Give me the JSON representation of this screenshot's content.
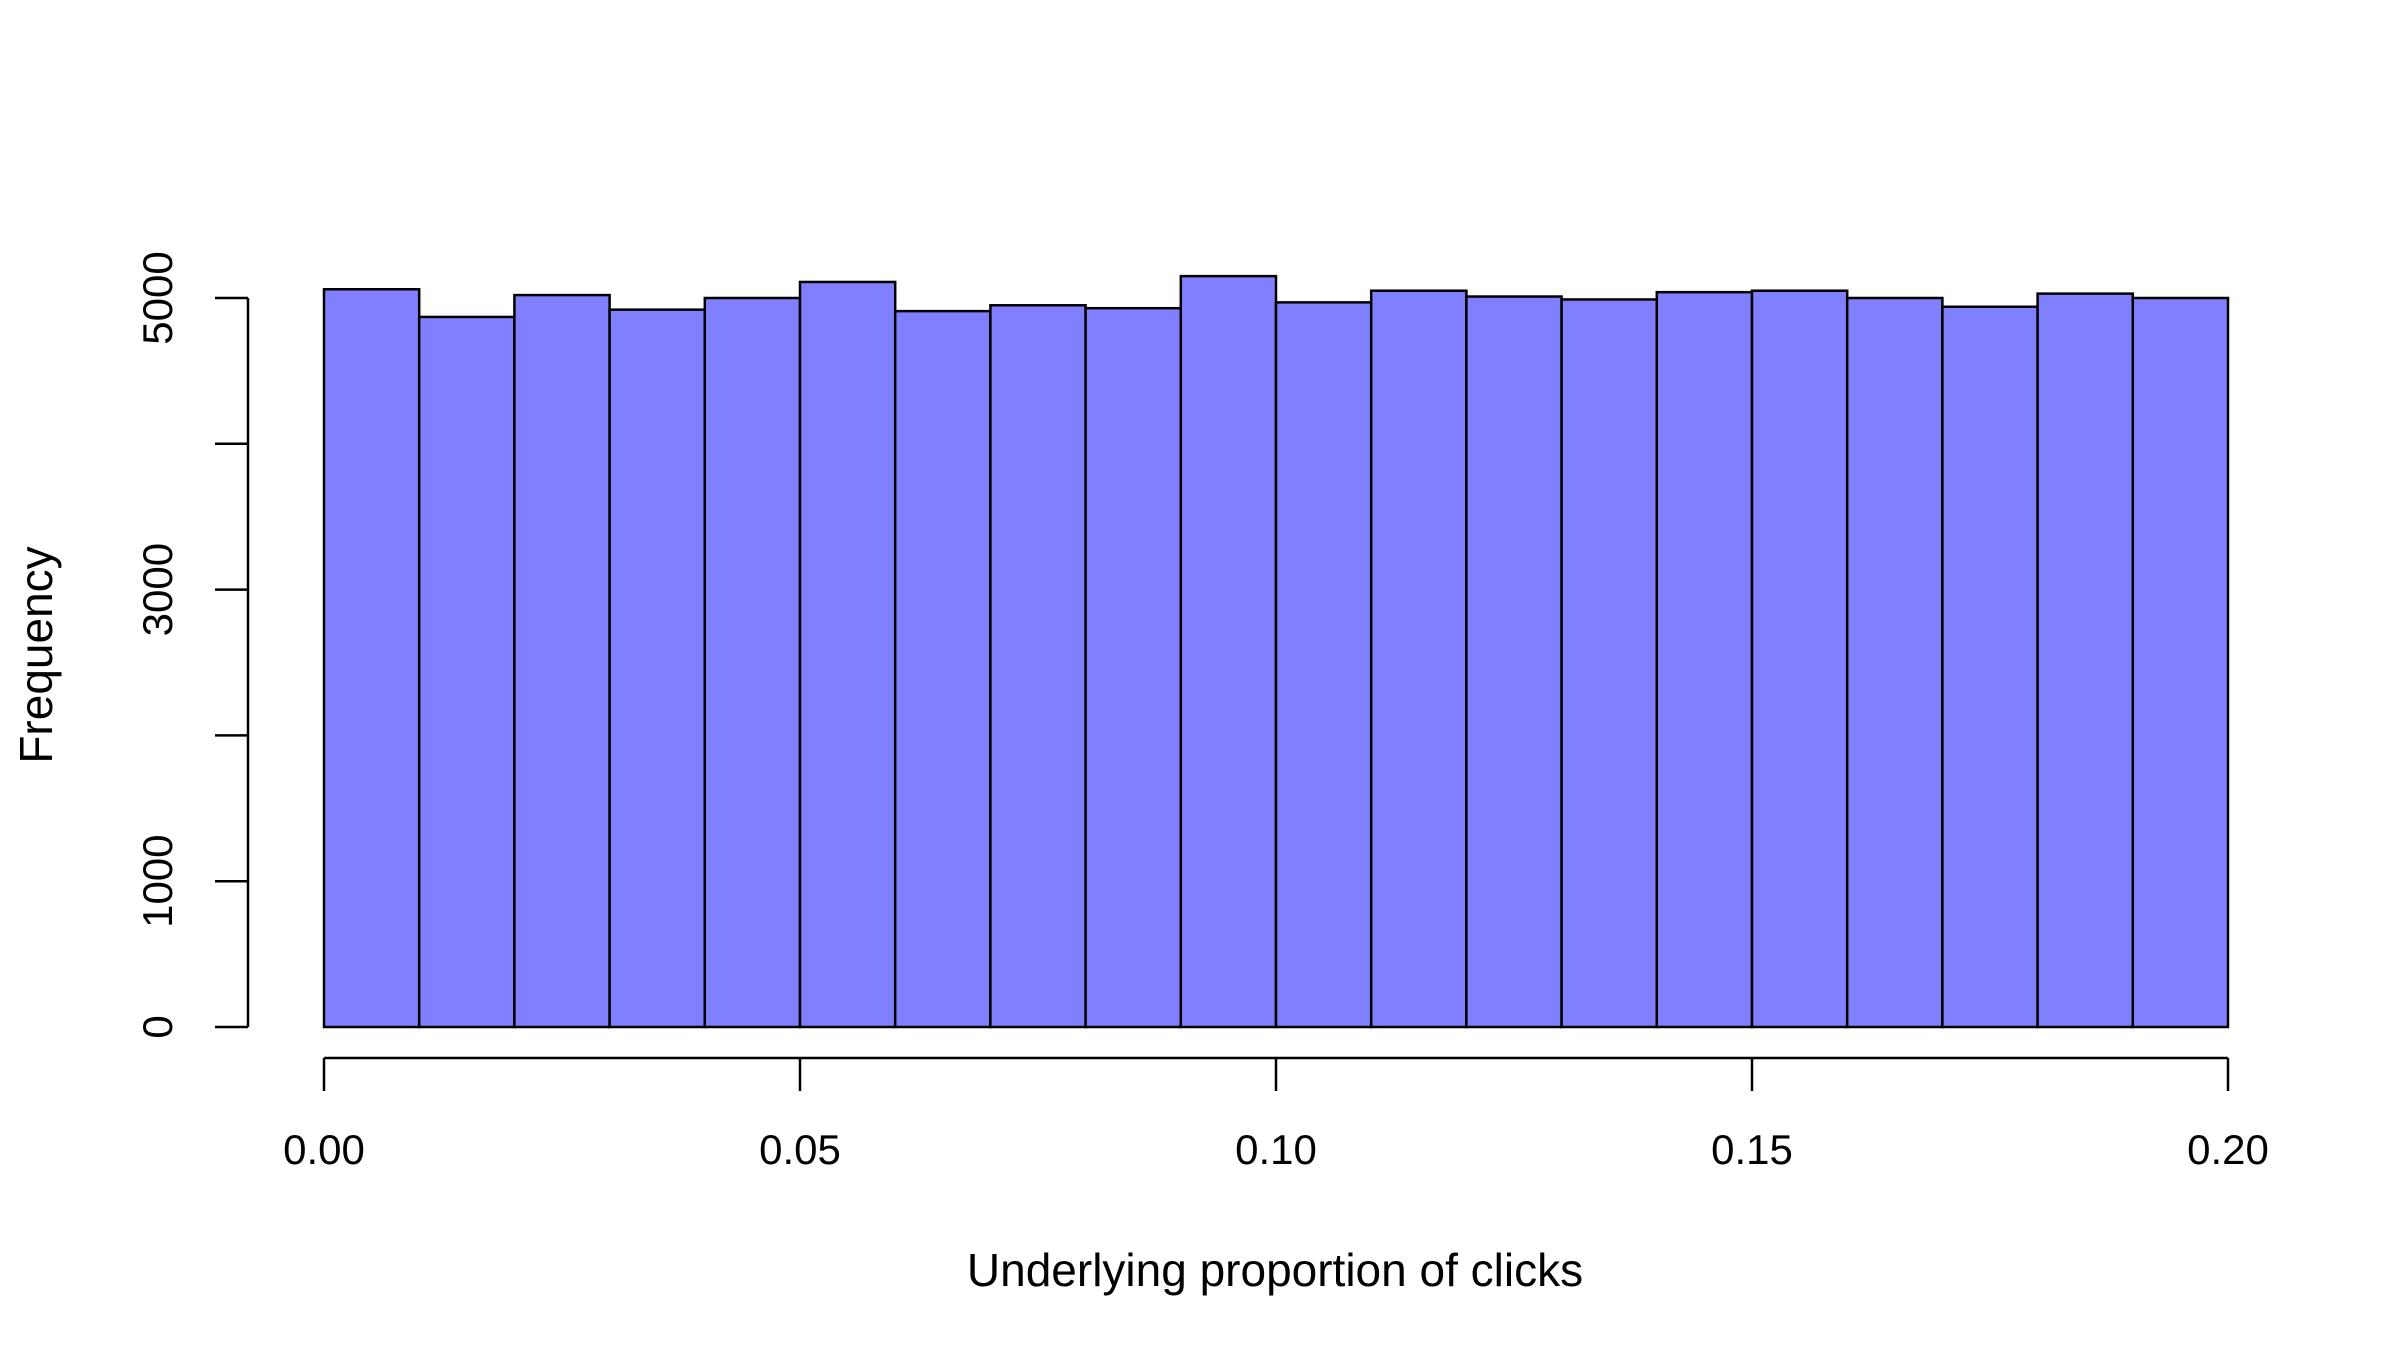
{
  "chart_data": {
    "type": "bar",
    "title": "",
    "xlabel": "Underlying proportion of clicks",
    "ylabel": "Frequency",
    "bin_edges": [
      0.0,
      0.01,
      0.02,
      0.03,
      0.04,
      0.05,
      0.06,
      0.07,
      0.08,
      0.09,
      0.1,
      0.11,
      0.12,
      0.13,
      0.14,
      0.15,
      0.16,
      0.17,
      0.18,
      0.19,
      0.2
    ],
    "values": [
      5060,
      4870,
      5020,
      4920,
      5000,
      5110,
      4910,
      4950,
      4930,
      5150,
      4970,
      5050,
      5010,
      4990,
      5040,
      5050,
      5000,
      4940,
      5030,
      5000
    ],
    "xlim": [
      0.0,
      0.2
    ],
    "ylim": [
      0,
      5000
    ],
    "x_ticks": [
      {
        "value": 0.0,
        "label": "0.00"
      },
      {
        "value": 0.05,
        "label": "0.05"
      },
      {
        "value": 0.1,
        "label": "0.10"
      },
      {
        "value": 0.15,
        "label": "0.15"
      },
      {
        "value": 0.2,
        "label": "0.20"
      }
    ],
    "y_ticks": [
      {
        "value": 0,
        "label": "0"
      },
      {
        "value": 1000,
        "label": "1000"
      },
      {
        "value": 2000,
        "label": ""
      },
      {
        "value": 3000,
        "label": "3000"
      },
      {
        "value": 4000,
        "label": ""
      },
      {
        "value": 5000,
        "label": "5000"
      }
    ],
    "bar_color": "#8080FF",
    "edge_color": "#000000",
    "grid": false,
    "legend": "none"
  }
}
